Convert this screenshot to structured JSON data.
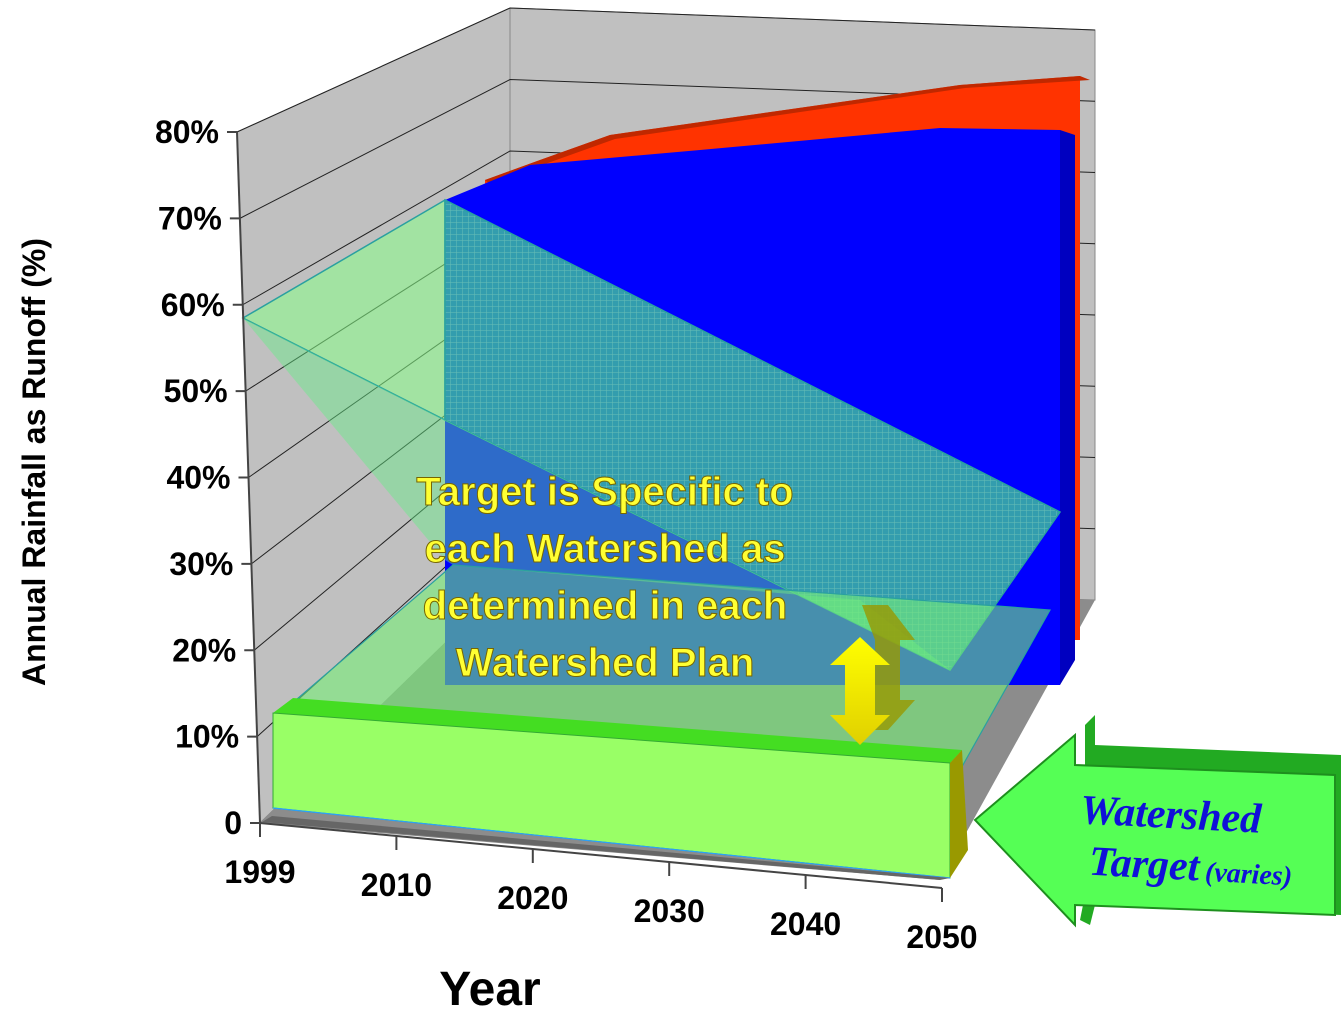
{
  "chart_data": {
    "type": "area",
    "subtype": "3d-area",
    "title": "",
    "xlabel": "Year",
    "ylabel": "Annual Rainfall as Runoff (%)",
    "categories": [
      "1999",
      "2010",
      "2020",
      "2030",
      "2040",
      "2050"
    ],
    "y_ticks": [
      "0",
      "10%",
      "20%",
      "30%",
      "40%",
      "50%",
      "60%",
      "70%",
      "80%"
    ],
    "ylim": [
      0,
      80
    ],
    "grid": true,
    "legend": "none",
    "series": [
      {
        "values": [
          65,
          70,
          75,
          78,
          82,
          85
        ],
        "color": "#ff3300"
      },
      {
        "values": [
          60,
          66,
          71,
          74,
          77,
          80
        ],
        "color": "#0000ff"
      },
      {
        "values": [
          12,
          12,
          12,
          12,
          12,
          12
        ],
        "color": "#99ff66"
      }
    ],
    "annotations": {
      "center_callout": [
        "Target is Specific to",
        "each Watershed as",
        "determined in each",
        "Watershed Plan"
      ],
      "target_arrow_line1": "Watershed",
      "target_arrow_line2": "Target",
      "target_arrow_suffix": "(varies)"
    }
  }
}
